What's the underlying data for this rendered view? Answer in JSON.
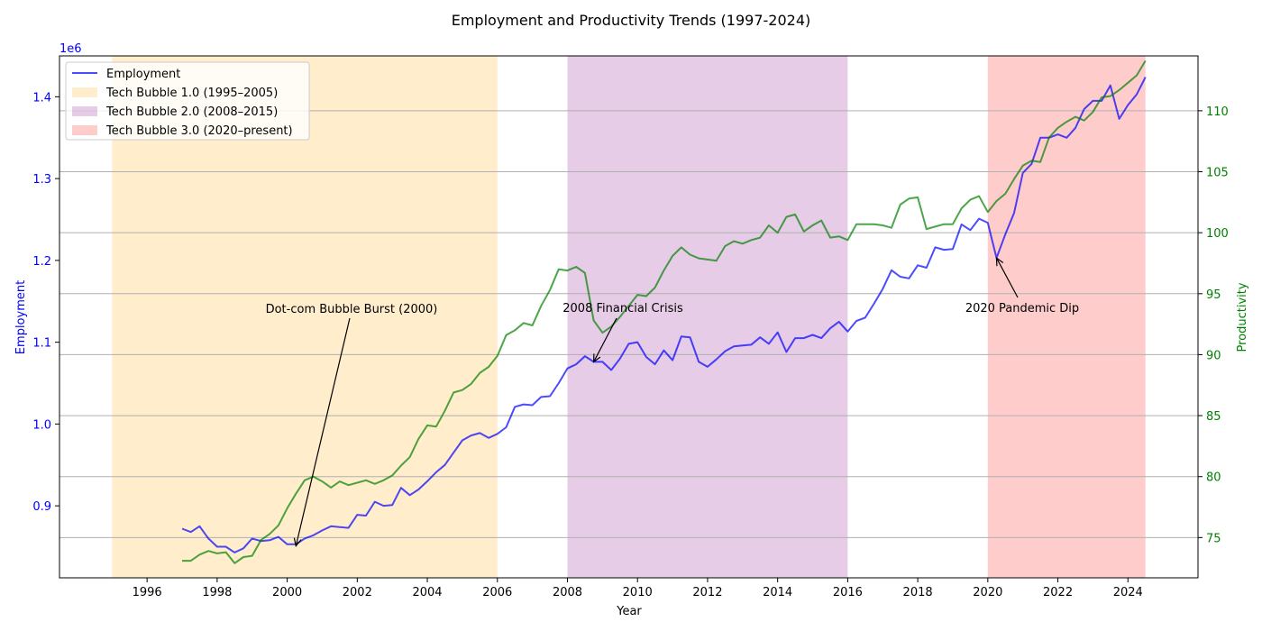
{
  "chart_data": {
    "type": "line",
    "title": "Employment and Productivity Trends (1997-2024)",
    "xlabel": "Year",
    "ylabel_left": "Employment",
    "ylabel_right": "Productivity",
    "left_axis_offset_label": "1e6",
    "xlim": [
      1993.5,
      2026.0
    ],
    "ylim_left": [
      812000,
      1450000
    ],
    "ylim_right": [
      71.7,
      114.5
    ],
    "x_ticks": [
      1996,
      1998,
      2000,
      2002,
      2004,
      2006,
      2008,
      2010,
      2012,
      2014,
      2016,
      2018,
      2020,
      2022,
      2024
    ],
    "y_left_ticks": [
      900000,
      1000000,
      1100000,
      1200000,
      1300000,
      1400000
    ],
    "y_left_tick_labels": [
      "0.9",
      "1.0",
      "1.1",
      "1.2",
      "1.3",
      "1.4"
    ],
    "y_right_ticks": [
      75,
      80,
      85,
      90,
      95,
      100,
      105,
      110
    ],
    "grid": "horizontal lines at right-axis ticks",
    "legend_position": "upper-left",
    "colors": {
      "employment": "#0000ff",
      "productivity": "#008000",
      "left_axis": "#0000ff",
      "right_axis": "#008000",
      "band_1": "#ffa500",
      "band_2": "#800080",
      "band_3": "#ff0000"
    },
    "bands": [
      {
        "label": "Tech Bubble 1.0 (1995–2005)",
        "x0": 1995,
        "x1": 2006,
        "color": "#ffa500"
      },
      {
        "label": "Tech Bubble 2.0 (2008–2015)",
        "x0": 2008,
        "x1": 2016,
        "color": "#800080"
      },
      {
        "label": "Tech Bubble 3.0 (2020–present)",
        "x0": 2020,
        "x1": 2024.5,
        "color": "#ff0000"
      }
    ],
    "series": [
      {
        "name": "Employment",
        "axis": "left",
        "color": "#0000ff",
        "x": [
          1997.0,
          1997.25,
          1997.5,
          1997.75,
          1998.0,
          1998.25,
          1998.5,
          1998.75,
          1999.0,
          1999.25,
          1999.5,
          1999.75,
          2000.0,
          2000.25,
          2000.5,
          2000.75,
          2001.0,
          2001.25,
          2001.5,
          2001.75,
          2002.0,
          2002.25,
          2002.5,
          2002.75,
          2003.0,
          2003.25,
          2003.5,
          2003.75,
          2004.0,
          2004.25,
          2004.5,
          2004.75,
          2005.0,
          2005.25,
          2005.5,
          2005.75,
          2006.0,
          2006.25,
          2006.5,
          2006.75,
          2007.0,
          2007.25,
          2007.5,
          2007.75,
          2008.0,
          2008.25,
          2008.5,
          2008.75,
          2009.0,
          2009.25,
          2009.5,
          2009.75,
          2010.0,
          2010.25,
          2010.5,
          2010.75,
          2011.0,
          2011.25,
          2011.5,
          2011.75,
          2012.0,
          2012.25,
          2012.5,
          2012.75,
          2013.0,
          2013.25,
          2013.5,
          2013.75,
          2014.0,
          2014.25,
          2014.5,
          2014.75,
          2015.0,
          2015.25,
          2015.5,
          2015.75,
          2016.0,
          2016.25,
          2016.5,
          2016.75,
          2017.0,
          2017.25,
          2017.5,
          2017.75,
          2018.0,
          2018.25,
          2018.5,
          2018.75,
          2019.0,
          2019.25,
          2019.5,
          2019.75,
          2020.0,
          2020.25,
          2020.5,
          2020.75,
          2021.0,
          2021.25,
          2021.5,
          2021.75,
          2022.0,
          2022.25,
          2022.5,
          2022.75,
          2023.0,
          2023.25,
          2023.5,
          2023.75,
          2024.0,
          2024.25,
          2024.5
        ],
        "values": [
          872000,
          868000,
          875000,
          860000,
          850000,
          850000,
          843000,
          848000,
          860000,
          857000,
          858000,
          862000,
          853000,
          853000,
          860000,
          864000,
          870000,
          875000,
          874000,
          873000,
          889000,
          888000,
          905000,
          900000,
          901000,
          922000,
          913000,
          920000,
          930000,
          941000,
          950000,
          965000,
          980000,
          986000,
          989000,
          983000,
          988000,
          996000,
          1021000,
          1024000,
          1023000,
          1033000,
          1034000,
          1050000,
          1068000,
          1073000,
          1083000,
          1076000,
          1076000,
          1066000,
          1080000,
          1098000,
          1100000,
          1082000,
          1073000,
          1090000,
          1078000,
          1107000,
          1106000,
          1076000,
          1070000,
          1079000,
          1089000,
          1095000,
          1096000,
          1097000,
          1106000,
          1098000,
          1112000,
          1088000,
          1105000,
          1105000,
          1109000,
          1105000,
          1117000,
          1125000,
          1113000,
          1126000,
          1130000,
          1147000,
          1165000,
          1188000,
          1180000,
          1178000,
          1194000,
          1191000,
          1216000,
          1213000,
          1214000,
          1244000,
          1237000,
          1251000,
          1246000,
          1203000,
          1232000,
          1258000,
          1307000,
          1318000,
          1350000,
          1350000,
          1354000,
          1350000,
          1362000,
          1385000,
          1395000,
          1395000,
          1414000,
          1373000,
          1390000,
          1403000,
          1424000
        ]
      },
      {
        "name": "",
        "axis": "right",
        "color": "#008000",
        "x": [
          1997.0,
          1997.25,
          1997.5,
          1997.75,
          1998.0,
          1998.25,
          1998.5,
          1998.75,
          1999.0,
          1999.25,
          1999.5,
          1999.75,
          2000.0,
          2000.25,
          2000.5,
          2000.75,
          2001.0,
          2001.25,
          2001.5,
          2001.75,
          2002.0,
          2002.25,
          2002.5,
          2002.75,
          2003.0,
          2003.25,
          2003.5,
          2003.75,
          2004.0,
          2004.25,
          2004.5,
          2004.75,
          2005.0,
          2005.25,
          2005.5,
          2005.75,
          2006.0,
          2006.25,
          2006.5,
          2006.75,
          2007.0,
          2007.25,
          2007.5,
          2007.75,
          2008.0,
          2008.25,
          2008.5,
          2008.75,
          2009.0,
          2009.25,
          2009.5,
          2009.75,
          2010.0,
          2010.25,
          2010.5,
          2010.75,
          2011.0,
          2011.25,
          2011.5,
          2011.75,
          2012.0,
          2012.25,
          2012.5,
          2012.75,
          2013.0,
          2013.25,
          2013.5,
          2013.75,
          2014.0,
          2014.25,
          2014.5,
          2014.75,
          2015.0,
          2015.25,
          2015.5,
          2015.75,
          2016.0,
          2016.25,
          2016.5,
          2016.75,
          2017.0,
          2017.25,
          2017.5,
          2017.75,
          2018.0,
          2018.25,
          2018.5,
          2018.75,
          2019.0,
          2019.25,
          2019.5,
          2019.75,
          2020.0,
          2020.25,
          2020.5,
          2020.75,
          2021.0,
          2021.25,
          2021.5,
          2021.75,
          2022.0,
          2022.25,
          2022.5,
          2022.75,
          2023.0,
          2023.25,
          2023.5,
          2023.75,
          2024.0,
          2024.25,
          2024.5
        ],
        "values": [
          73.1,
          73.1,
          73.6,
          73.9,
          73.7,
          73.8,
          72.9,
          73.4,
          73.5,
          74.8,
          75.3,
          76.0,
          77.4,
          78.6,
          79.7,
          80.0,
          79.6,
          79.1,
          79.6,
          79.3,
          79.5,
          79.7,
          79.4,
          79.7,
          80.1,
          80.9,
          81.6,
          83.1,
          84.2,
          84.1,
          85.4,
          86.9,
          87.1,
          87.6,
          88.5,
          89.0,
          89.9,
          91.6,
          92.0,
          92.6,
          92.4,
          94.0,
          95.3,
          97.0,
          96.9,
          97.2,
          96.7,
          92.8,
          91.8,
          92.3,
          93.1,
          94.0,
          94.9,
          94.8,
          95.5,
          96.9,
          98.1,
          98.8,
          98.2,
          97.9,
          97.8,
          97.7,
          98.9,
          99.3,
          99.1,
          99.4,
          99.6,
          100.6,
          100.0,
          101.3,
          101.5,
          100.1,
          100.6,
          101.0,
          99.6,
          99.7,
          99.4,
          100.7,
          100.7,
          100.7,
          100.6,
          100.4,
          102.3,
          102.8,
          102.9,
          100.3,
          100.5,
          100.7,
          100.7,
          102.0,
          102.7,
          103.0,
          101.7,
          102.6,
          103.2,
          104.4,
          105.5,
          105.9,
          105.8,
          107.8,
          108.6,
          109.1,
          109.5,
          109.2,
          109.9,
          111.1,
          111.2,
          111.7,
          112.3,
          112.9,
          114.1
        ]
      }
    ],
    "legend": [
      {
        "label": "Employment",
        "kind": "line",
        "color": "#0000ff"
      },
      {
        "label": "Tech Bubble 1.0 (1995–2005)",
        "kind": "patch",
        "color": "#ffa500"
      },
      {
        "label": "Tech Bubble 2.0 (2008–2015)",
        "kind": "patch",
        "color": "#800080"
      },
      {
        "label": "Tech Bubble 3.0 (2020–present)",
        "kind": "patch",
        "color": "#ff0000"
      }
    ],
    "annotations": [
      {
        "text": "Dot-com Bubble Burst (2000)",
        "xy": [
          2000.25,
          851000
        ],
        "axis": "left"
      },
      {
        "text": "2008 Financial Crisis",
        "xy": [
          2008.75,
          1076000
        ],
        "axis": "left"
      },
      {
        "text": "2020 Pandemic Dip",
        "xy": [
          2020.25,
          1203000
        ],
        "axis": "left"
      }
    ]
  }
}
